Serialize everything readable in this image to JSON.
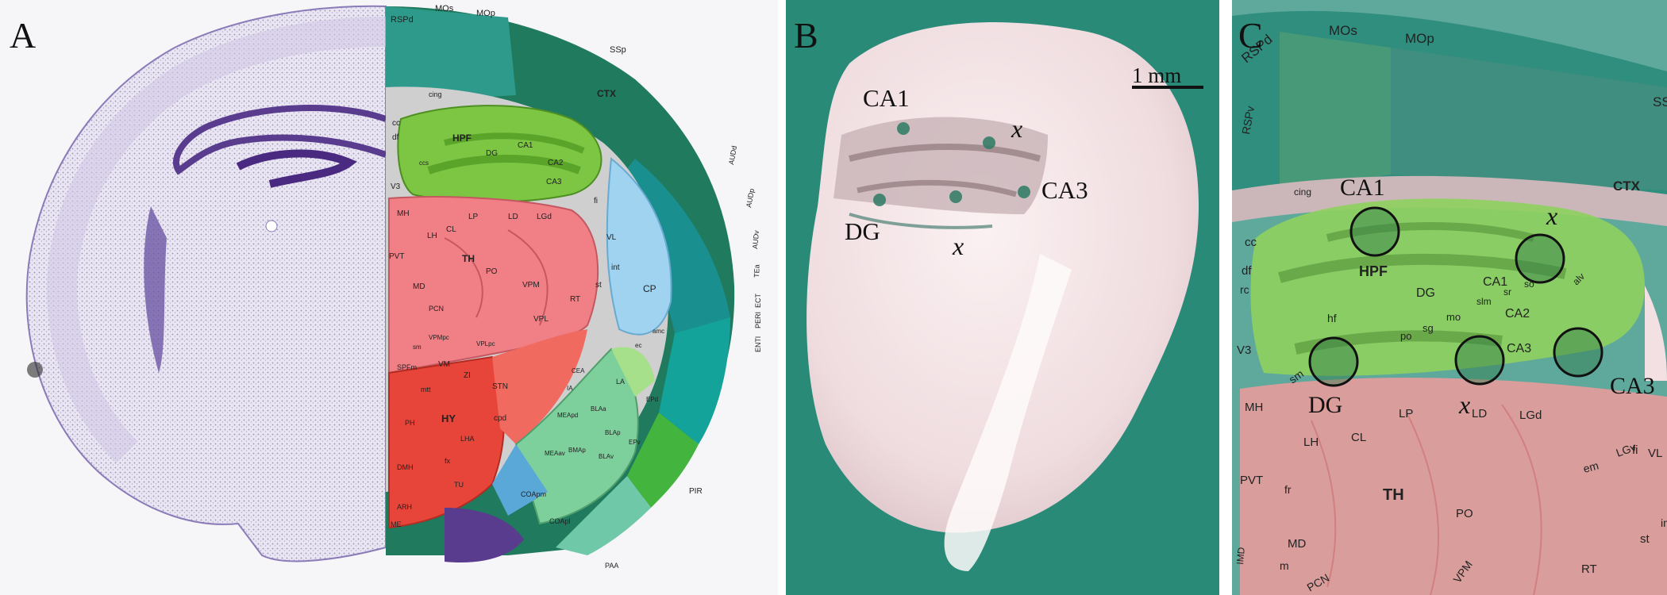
{
  "panels": {
    "a": {
      "letter": "A",
      "region_labels": [
        "RSPd",
        "MOs",
        "MOp",
        "SSp",
        "CTX",
        "cing",
        "cc",
        "df",
        "HPF",
        "DG",
        "CA1",
        "CA2",
        "CA3",
        "V3",
        "MH",
        "LH",
        "CL",
        "LP",
        "LD",
        "LGd",
        "TH",
        "PO",
        "VPM",
        "VPL",
        "RT",
        "CP",
        "fi",
        "VL",
        "int",
        "st",
        "PVT",
        "MD",
        "PCN",
        "VPMpc",
        "VPLpc",
        "VM",
        "SPFm",
        "ZI",
        "STN",
        "mtt",
        "HY",
        "PH",
        "LHA",
        "DMH",
        "ARH",
        "TU",
        "ME",
        "fx",
        "cpd",
        "CEA",
        "LA",
        "BLAa",
        "BLAp",
        "BMAp",
        "BLAv",
        "EPd",
        "EPv",
        "MEAav",
        "MEApd",
        "COApm",
        "COApl",
        "PAA",
        "PIR",
        "AUDd",
        "AUDp",
        "AUDv",
        "TEa",
        "ECT",
        "PERI",
        "ENTl",
        "amc",
        "ec",
        "ccs",
        "sm",
        "IA"
      ]
    },
    "b": {
      "letter": "B",
      "labels": {
        "ca1": "CA1",
        "ca3": "CA3",
        "dg": "DG",
        "x": "x"
      },
      "scale_bar": "1 mm"
    },
    "c": {
      "letter": "C",
      "labels": {
        "ca1": "CA1",
        "ca3": "CA3",
        "dg": "DG",
        "x": "x"
      },
      "region_labels": [
        "RSPd",
        "MOs",
        "MOp",
        "SSp",
        "RSPv",
        "CTX",
        "cing",
        "cc",
        "df",
        "rc",
        "HPF",
        "DG",
        "CA1",
        "CA2",
        "CA3",
        "hf",
        "mo",
        "sg",
        "po",
        "slm",
        "sr",
        "so",
        "alv",
        "V3",
        "sm",
        "MH",
        "LH",
        "CL",
        "LP",
        "LD",
        "LGd",
        "TH",
        "PO",
        "VPM",
        "PVT",
        "fr",
        "MD",
        "IMD",
        "m",
        "PCN",
        "fi",
        "VL",
        "st",
        "RT",
        "em",
        "LGv",
        "int"
      ]
    }
  },
  "colors": {
    "cortex_dark": "#1f7a5e",
    "cortex_teal": "#1a8f8f",
    "hippocampus": "#7cc644",
    "thalamus": "#f07f86",
    "hypothalamus": "#e8453a",
    "striatum": "#9fd3f0",
    "amygdala": "#7dcf9b",
    "fiber": "#c8c8c8",
    "nissl": "#8b7bb8",
    "photo_background": "#2a8a78"
  }
}
